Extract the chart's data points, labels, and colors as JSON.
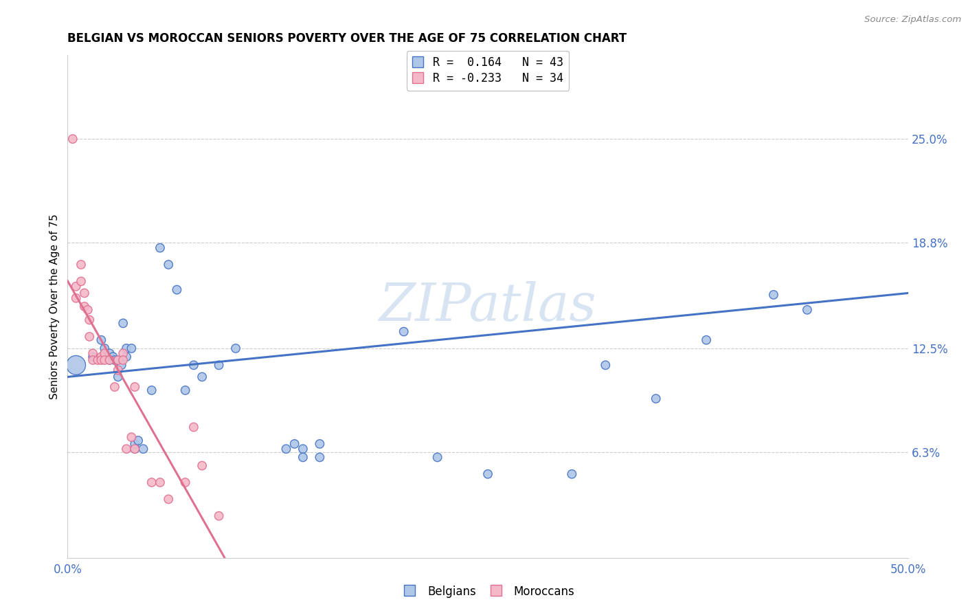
{
  "title": "BELGIAN VS MOROCCAN SENIORS POVERTY OVER THE AGE OF 75 CORRELATION CHART",
  "source": "Source: ZipAtlas.com",
  "ylabel": "Seniors Poverty Over the Age of 75",
  "xlim": [
    0,
    0.5
  ],
  "ylim": [
    0,
    0.3
  ],
  "ytick_values": [
    0.063,
    0.125,
    0.188,
    0.25
  ],
  "ytick_labels": [
    "6.3%",
    "12.5%",
    "18.8%",
    "25.0%"
  ],
  "watermark": "ZIPatlas",
  "legend_r1": "R =  0.164   N = 43",
  "legend_r2": "R = -0.233   N = 34",
  "color_belgian": "#aec6e8",
  "color_moroccan": "#f4b8c8",
  "color_line_belgian": "#4472c4",
  "color_line_moroccan": "#e07090",
  "belgians_x": [
    0.005,
    0.015,
    0.02,
    0.022,
    0.025,
    0.025,
    0.027,
    0.028,
    0.03,
    0.03,
    0.032,
    0.033,
    0.035,
    0.035,
    0.038,
    0.04,
    0.04,
    0.042,
    0.045,
    0.05,
    0.055,
    0.06,
    0.065,
    0.07,
    0.075,
    0.08,
    0.09,
    0.1,
    0.13,
    0.135,
    0.14,
    0.14,
    0.15,
    0.15,
    0.2,
    0.22,
    0.25,
    0.3,
    0.32,
    0.35,
    0.38,
    0.42,
    0.44
  ],
  "belgians_y": [
    0.115,
    0.12,
    0.13,
    0.125,
    0.118,
    0.122,
    0.12,
    0.118,
    0.108,
    0.118,
    0.115,
    0.14,
    0.125,
    0.12,
    0.125,
    0.065,
    0.068,
    0.07,
    0.065,
    0.1,
    0.185,
    0.175,
    0.16,
    0.1,
    0.115,
    0.108,
    0.115,
    0.125,
    0.065,
    0.068,
    0.065,
    0.06,
    0.06,
    0.068,
    0.135,
    0.06,
    0.05,
    0.05,
    0.115,
    0.095,
    0.13,
    0.157,
    0.148
  ],
  "belgians_size": [
    400,
    80,
    80,
    80,
    80,
    80,
    80,
    80,
    80,
    80,
    80,
    80,
    80,
    80,
    80,
    80,
    80,
    80,
    80,
    80,
    80,
    80,
    80,
    80,
    80,
    80,
    80,
    80,
    80,
    80,
    80,
    80,
    80,
    80,
    80,
    80,
    80,
    80,
    80,
    80,
    80,
    80,
    80
  ],
  "moroccans_x": [
    0.003,
    0.005,
    0.005,
    0.008,
    0.008,
    0.01,
    0.01,
    0.012,
    0.013,
    0.013,
    0.015,
    0.015,
    0.018,
    0.02,
    0.02,
    0.022,
    0.022,
    0.025,
    0.028,
    0.03,
    0.03,
    0.033,
    0.033,
    0.035,
    0.038,
    0.04,
    0.04,
    0.05,
    0.055,
    0.06,
    0.07,
    0.075,
    0.08,
    0.09
  ],
  "moroccans_y": [
    0.25,
    0.162,
    0.155,
    0.175,
    0.165,
    0.158,
    0.15,
    0.148,
    0.142,
    0.132,
    0.122,
    0.118,
    0.118,
    0.12,
    0.118,
    0.122,
    0.118,
    0.118,
    0.102,
    0.112,
    0.118,
    0.122,
    0.118,
    0.065,
    0.072,
    0.065,
    0.102,
    0.045,
    0.045,
    0.035,
    0.045,
    0.078,
    0.055,
    0.025
  ],
  "moroccans_size": [
    80,
    80,
    80,
    80,
    80,
    80,
    80,
    80,
    80,
    80,
    80,
    80,
    80,
    80,
    80,
    80,
    80,
    80,
    80,
    80,
    80,
    80,
    80,
    80,
    80,
    80,
    80,
    80,
    80,
    80,
    80,
    80,
    80,
    80
  ],
  "moroccan_line_solid_end_x": 0.1,
  "belgian_line_start_y": 0.105,
  "belgian_line_end_y": 0.158
}
